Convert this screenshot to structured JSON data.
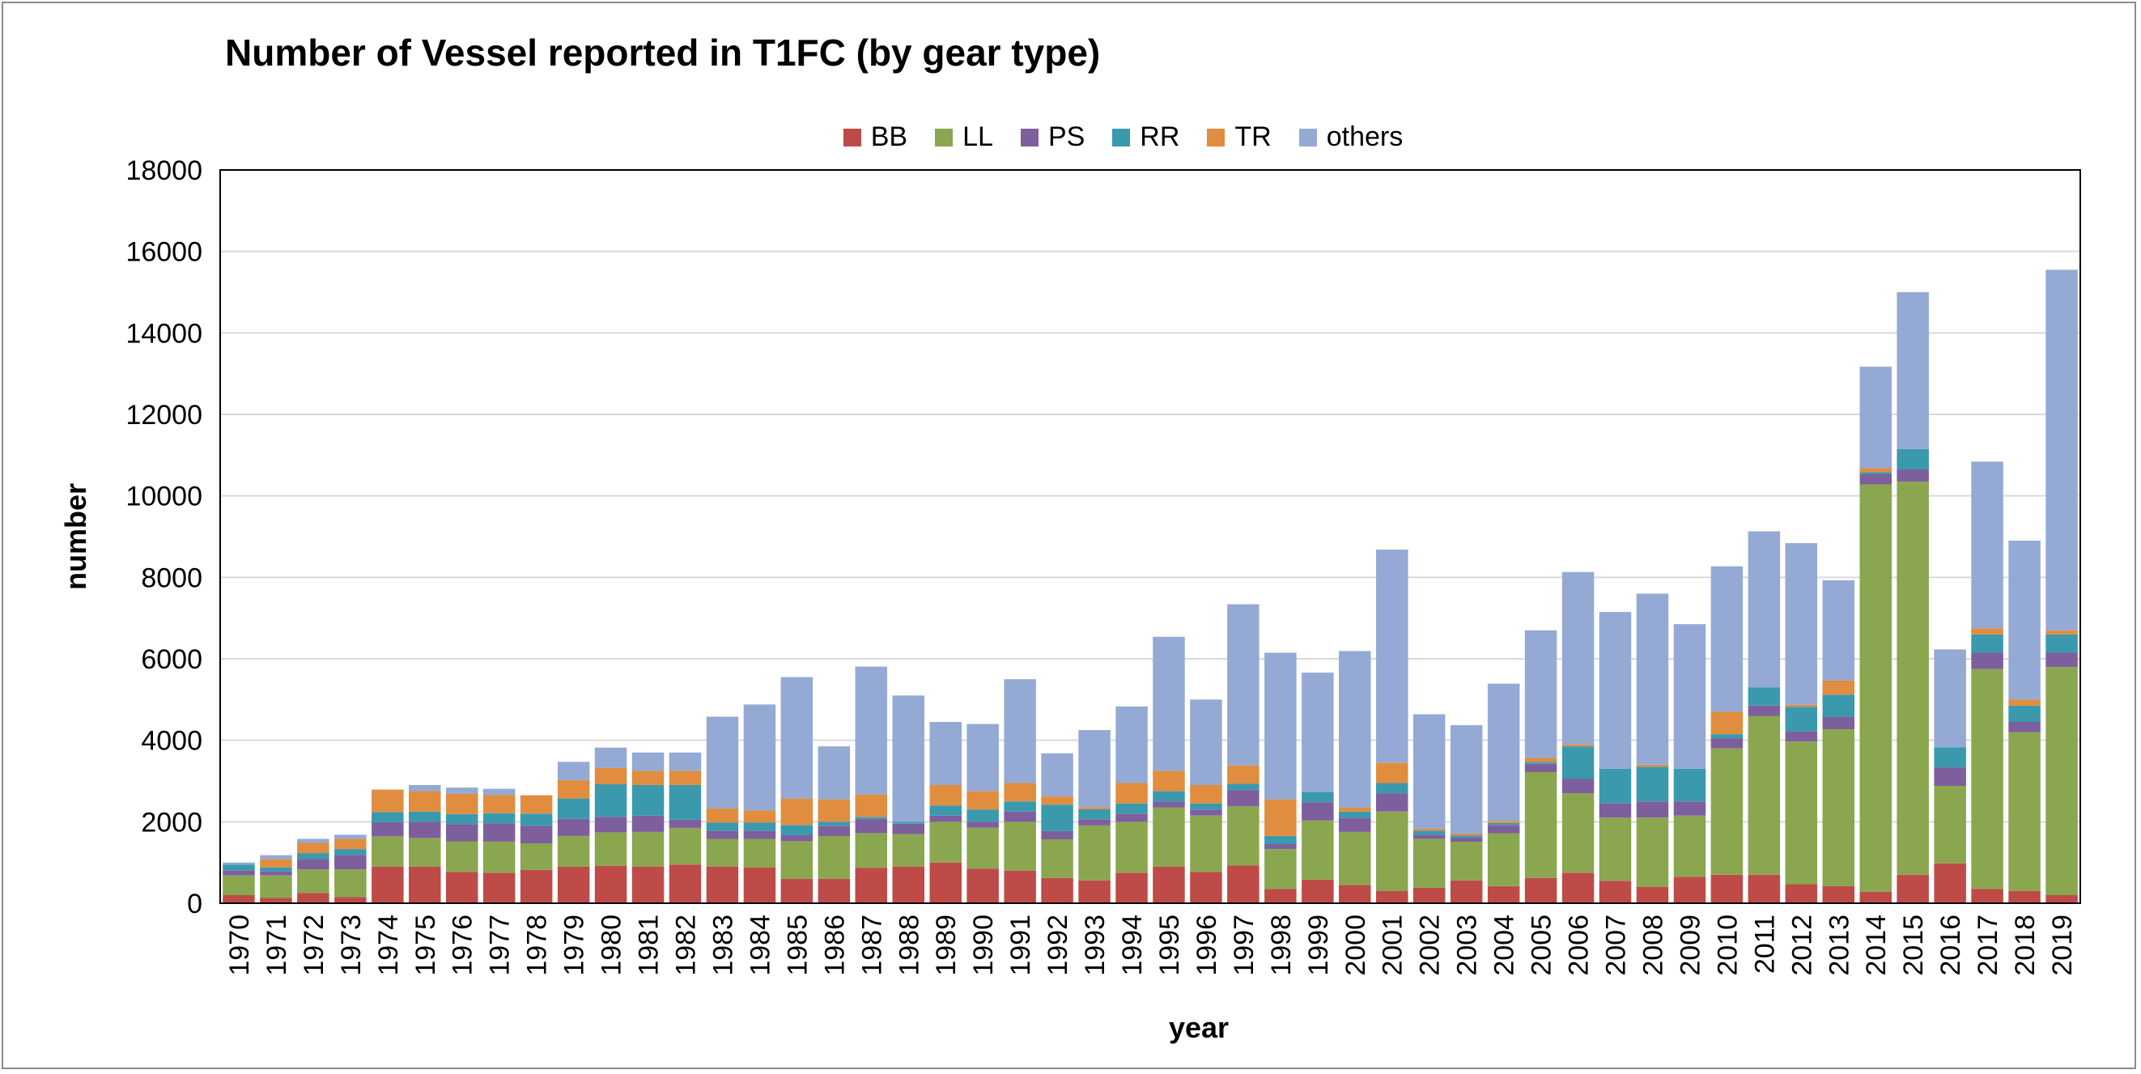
{
  "chart_data": {
    "type": "bar",
    "stacked": true,
    "title": "Number of Vessel reported in T1FC (by gear type)",
    "xlabel": "year",
    "ylabel": "number",
    "ylim": [
      0,
      18000
    ],
    "yticks": [
      0,
      2000,
      4000,
      6000,
      8000,
      10000,
      12000,
      14000,
      16000,
      18000
    ],
    "grid": true,
    "legend_position": "top",
    "categories": [
      "1970",
      "1971",
      "1972",
      "1973",
      "1974",
      "1975",
      "1976",
      "1977",
      "1978",
      "1979",
      "1980",
      "1981",
      "1982",
      "1983",
      "1984",
      "1985",
      "1986",
      "1987",
      "1988",
      "1989",
      "1990",
      "1991",
      "1992",
      "1993",
      "1994",
      "1995",
      "1996",
      "1997",
      "1998",
      "1999",
      "2000",
      "2001",
      "2002",
      "2003",
      "2004",
      "2005",
      "2006",
      "2007",
      "2008",
      "2009",
      "2010",
      "2011",
      "2012",
      "2013",
      "2014",
      "2015",
      "2016",
      "2017",
      "2018",
      "2019"
    ],
    "series": [
      {
        "name": "BB",
        "color": "#be4b48",
        "values": [
          200,
          130,
          250,
          150,
          900,
          900,
          770,
          750,
          820,
          900,
          920,
          900,
          950,
          900,
          880,
          600,
          600,
          870,
          900,
          1000,
          850,
          800,
          620,
          560,
          750,
          900,
          770,
          930,
          350,
          580,
          450,
          300,
          380,
          560,
          420,
          620,
          750,
          550,
          400,
          650,
          700,
          700,
          470,
          420,
          280,
          700,
          980,
          350,
          300,
          200
        ]
      },
      {
        "name": "LL",
        "color": "#8aa64f",
        "values": [
          480,
          550,
          580,
          680,
          740,
          700,
          750,
          760,
          650,
          750,
          820,
          850,
          900,
          680,
          700,
          920,
          1050,
          850,
          800,
          1000,
          1000,
          1200,
          950,
          1350,
          1250,
          1450,
          1380,
          1450,
          980,
          1450,
          1300,
          1950,
          1200,
          950,
          1300,
          2600,
          1950,
          1550,
          1700,
          1500,
          3100,
          3900,
          3500,
          3850,
          10000,
          9650,
          1900,
          5400,
          3900,
          5600
        ]
      },
      {
        "name": "PS",
        "color": "#7e5f9e",
        "values": [
          120,
          100,
          250,
          350,
          350,
          400,
          420,
          450,
          430,
          420,
          380,
          400,
          200,
          200,
          200,
          150,
          250,
          350,
          250,
          150,
          150,
          250,
          200,
          150,
          200,
          150,
          150,
          400,
          120,
          450,
          350,
          450,
          100,
          100,
          200,
          200,
          350,
          350,
          400,
          350,
          250,
          250,
          250,
          300,
          250,
          300,
          450,
          400,
          250,
          350
        ]
      },
      {
        "name": "RR",
        "color": "#3b99ad",
        "values": [
          150,
          100,
          150,
          150,
          250,
          250,
          250,
          250,
          300,
          500,
          800,
          750,
          850,
          200,
          200,
          250,
          100,
          50,
          50,
          250,
          300,
          250,
          650,
          250,
          250,
          250,
          150,
          150,
          200,
          250,
          150,
          250,
          100,
          50,
          50,
          50,
          800,
          850,
          850,
          800,
          100,
          450,
          600,
          550,
          50,
          500,
          500,
          450,
          400,
          450
        ]
      },
      {
        "name": "TR",
        "color": "#e08d3f",
        "values": [
          0,
          200,
          250,
          250,
          550,
          500,
          500,
          450,
          450,
          450,
          400,
          350,
          350,
          350,
          300,
          650,
          550,
          550,
          0,
          500,
          450,
          450,
          200,
          50,
          500,
          500,
          450,
          450,
          900,
          0,
          100,
          500,
          50,
          50,
          50,
          100,
          50,
          0,
          50,
          0,
          550,
          0,
          50,
          350,
          100,
          0,
          0,
          150,
          150,
          100
        ]
      },
      {
        "name": "others",
        "color": "#94aad4",
        "values": [
          50,
          100,
          100,
          100,
          0,
          150,
          150,
          150,
          0,
          450,
          500,
          450,
          450,
          2250,
          2600,
          2980,
          1300,
          3140,
          3100,
          1550,
          1650,
          2550,
          1060,
          1890,
          1880,
          3290,
          2100,
          3960,
          3600,
          2930,
          3840,
          5230,
          2810,
          2660,
          3370,
          3130,
          4230,
          3850,
          4200,
          3550,
          3570,
          3830,
          3970,
          2460,
          2490,
          3850,
          2400,
          4090,
          3900,
          8850
        ]
      }
    ]
  }
}
